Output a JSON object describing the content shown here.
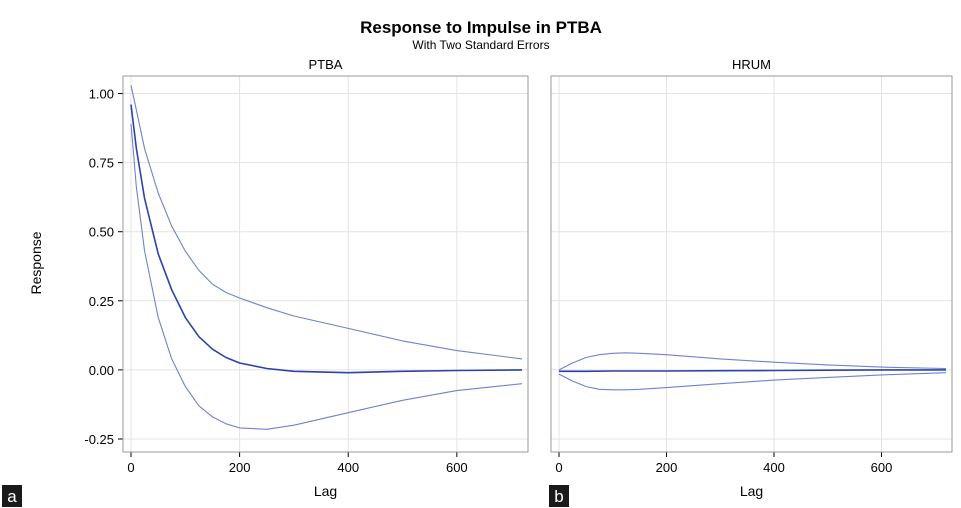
{
  "chart_data": {
    "type": "line",
    "title": "Response to Impulse in PTBA",
    "subtitle": "With Two Standard Errors",
    "ylabel": "Response",
    "ylim": [
      -0.25,
      1.05
    ],
    "yticks": [
      "1.00",
      "0.75",
      "0.50",
      "0.25",
      "0.00",
      "-0.25"
    ],
    "ytick_values": [
      1.0,
      0.75,
      0.5,
      0.25,
      0.0,
      -0.25
    ],
    "grid": true,
    "panels": [
      {
        "title": "PTBA",
        "letter": "a",
        "xlabel": "Lag",
        "xlim": [
          0,
          720
        ],
        "xticks": [
          "0",
          "200",
          "400",
          "600"
        ],
        "xtick_values": [
          0,
          200,
          400,
          600
        ],
        "series": [
          {
            "role": "estimate",
            "color": "#2b43a8",
            "x": [
              0,
              10,
              25,
              50,
              75,
              100,
              125,
              150,
              175,
              200,
              250,
              300,
              400,
              500,
              600,
              720
            ],
            "y": [
              0.96,
              0.8,
              0.62,
              0.42,
              0.29,
              0.19,
              0.12,
              0.075,
              0.045,
              0.025,
              0.005,
              -0.005,
              -0.01,
              -0.005,
              -0.002,
              0.0
            ]
          },
          {
            "role": "upper",
            "color": "#6f82cf",
            "x": [
              0,
              10,
              25,
              50,
              75,
              100,
              125,
              150,
              175,
              200,
              250,
              300,
              400,
              500,
              600,
              720
            ],
            "y": [
              1.03,
              0.94,
              0.8,
              0.64,
              0.52,
              0.43,
              0.36,
              0.31,
              0.28,
              0.26,
              0.225,
              0.195,
              0.15,
              0.105,
              0.07,
              0.04
            ]
          },
          {
            "role": "lower",
            "color": "#6f82cf",
            "x": [
              0,
              10,
              25,
              50,
              75,
              100,
              125,
              150,
              175,
              200,
              250,
              300,
              400,
              500,
              600,
              720
            ],
            "y": [
              0.89,
              0.66,
              0.43,
              0.19,
              0.04,
              -0.06,
              -0.13,
              -0.17,
              -0.195,
              -0.21,
              -0.215,
              -0.2,
              -0.155,
              -0.11,
              -0.075,
              -0.05
            ]
          }
        ]
      },
      {
        "title": "HRUM",
        "letter": "b",
        "xlabel": "Lag",
        "xlim": [
          0,
          720
        ],
        "xticks": [
          "0",
          "200",
          "400",
          "600"
        ],
        "xtick_values": [
          0,
          200,
          400,
          600
        ],
        "series": [
          {
            "role": "estimate",
            "color": "#2b43a8",
            "x": [
              0,
              50,
              100,
              200,
              300,
              400,
              500,
              600,
              720
            ],
            "y": [
              -0.005,
              -0.005,
              -0.004,
              -0.004,
              -0.003,
              -0.002,
              -0.001,
              0.0,
              0.0
            ]
          },
          {
            "role": "upper",
            "color": "#6f82cf",
            "x": [
              0,
              25,
              50,
              75,
              100,
              125,
              150,
              200,
              300,
              400,
              500,
              600,
              720
            ],
            "y": [
              0.0,
              0.025,
              0.045,
              0.055,
              0.06,
              0.062,
              0.06,
              0.055,
              0.04,
              0.028,
              0.018,
              0.01,
              0.005
            ]
          },
          {
            "role": "lower",
            "color": "#6f82cf",
            "x": [
              0,
              25,
              50,
              75,
              100,
              125,
              150,
              200,
              300,
              400,
              500,
              600,
              720
            ],
            "y": [
              -0.015,
              -0.04,
              -0.06,
              -0.07,
              -0.072,
              -0.072,
              -0.07,
              -0.064,
              -0.05,
              -0.037,
              -0.027,
              -0.018,
              -0.01
            ]
          }
        ]
      }
    ]
  }
}
